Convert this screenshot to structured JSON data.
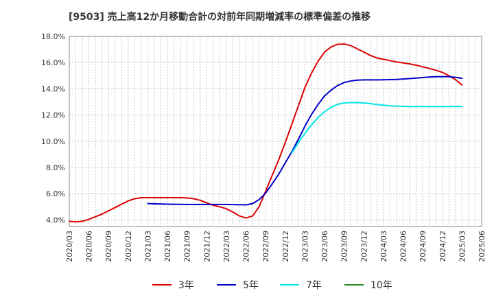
{
  "chart_data": {
    "type": "line",
    "title": "[9503]  売上高12か月移動合計の対前年同期増減率の標準偏差の推移",
    "xlabel": "",
    "ylabel": "",
    "ylim": [
      3.5,
      18.0
    ],
    "yticks": [
      4.0,
      6.0,
      8.0,
      10.0,
      12.0,
      14.0,
      16.0,
      18.0
    ],
    "ytick_labels": [
      "4.0%",
      "6.0%",
      "8.0%",
      "10.0%",
      "12.0%",
      "14.0%",
      "16.0%",
      "18.0%"
    ],
    "xtick_labels": [
      "2020/03",
      "2020/06",
      "2020/09",
      "2020/12",
      "2021/03",
      "2021/06",
      "2021/09",
      "2021/12",
      "2022/03",
      "2022/06",
      "2022/09",
      "2022/12",
      "2023/03",
      "2023/06",
      "2023/09",
      "2023/12",
      "2024/03",
      "2024/06",
      "2024/09",
      "2024/12",
      "2025/03",
      "2025/06"
    ],
    "grid": true,
    "legend_position": "bottom",
    "series": [
      {
        "name": "3年",
        "color": "#dd0000",
        "x": [
          "2020/03",
          "2020/04",
          "2020/05",
          "2020/06",
          "2020/07",
          "2020/08",
          "2020/09",
          "2020/10",
          "2020/11",
          "2020/12",
          "2021/01",
          "2021/02",
          "2021/03",
          "2021/04",
          "2021/05",
          "2021/06",
          "2021/07",
          "2021/08",
          "2021/09",
          "2021/10",
          "2021/11",
          "2021/12",
          "2022/01",
          "2022/02",
          "2022/03",
          "2022/04",
          "2022/05",
          "2022/06",
          "2022/07",
          "2022/08",
          "2022/09",
          "2022/10",
          "2022/11",
          "2022/12",
          "2023/01",
          "2023/02",
          "2023/03",
          "2023/04",
          "2023/05",
          "2023/06",
          "2023/07",
          "2023/08",
          "2023/09",
          "2023/10",
          "2023/11",
          "2023/12",
          "2024/01",
          "2024/02",
          "2024/03",
          "2024/04",
          "2024/05",
          "2024/06",
          "2024/07",
          "2024/08",
          "2024/09",
          "2024/10",
          "2024/11",
          "2024/12",
          "2025/01",
          "2025/02",
          "2025/03"
        ],
        "values": [
          3.9,
          3.85,
          3.9,
          4.05,
          4.25,
          4.45,
          4.7,
          4.95,
          5.2,
          5.45,
          5.62,
          5.7,
          5.7,
          5.7,
          5.7,
          5.7,
          5.7,
          5.7,
          5.68,
          5.62,
          5.5,
          5.3,
          5.12,
          5.0,
          4.85,
          4.6,
          4.3,
          4.15,
          4.3,
          5.0,
          6.2,
          7.4,
          8.6,
          9.9,
          11.3,
          12.7,
          14.1,
          15.2,
          16.1,
          16.8,
          17.2,
          17.4,
          17.42,
          17.3,
          17.05,
          16.8,
          16.55,
          16.35,
          16.25,
          16.15,
          16.05,
          15.98,
          15.9,
          15.8,
          15.68,
          15.55,
          15.42,
          15.25,
          15.0,
          14.7,
          14.3
        ]
      },
      {
        "name": "5年",
        "color": "#0000cc",
        "x": [
          "2021/03",
          "2021/06",
          "2021/09",
          "2021/12",
          "2022/03",
          "2022/06",
          "2022/07",
          "2022/08",
          "2022/09",
          "2022/10",
          "2022/11",
          "2022/12",
          "2023/01",
          "2023/02",
          "2023/03",
          "2023/04",
          "2023/05",
          "2023/06",
          "2023/07",
          "2023/08",
          "2023/09",
          "2023/10",
          "2023/11",
          "2023/12",
          "2024/01",
          "2024/02",
          "2024/03",
          "2024/04",
          "2024/05",
          "2024/06",
          "2024/07",
          "2024/08",
          "2024/09",
          "2024/10",
          "2024/11",
          "2024/12",
          "2025/01",
          "2025/02",
          "2025/03"
        ],
        "values": [
          5.25,
          5.2,
          5.18,
          5.18,
          5.18,
          5.15,
          5.25,
          5.55,
          6.05,
          6.75,
          7.5,
          8.35,
          9.2,
          10.15,
          11.15,
          12.05,
          12.8,
          13.45,
          13.9,
          14.25,
          14.48,
          14.6,
          14.66,
          14.68,
          14.68,
          14.68,
          14.69,
          14.7,
          14.72,
          14.75,
          14.78,
          14.82,
          14.86,
          14.9,
          14.92,
          14.93,
          14.92,
          14.88,
          14.8
        ]
      },
      {
        "name": "7年",
        "color": "#00e5e5",
        "x": [
          "2023/01",
          "2023/02",
          "2023/03",
          "2023/04",
          "2023/05",
          "2023/06",
          "2023/07",
          "2023/08",
          "2023/09",
          "2023/10",
          "2023/11",
          "2023/12",
          "2024/01",
          "2024/02",
          "2024/03",
          "2024/04",
          "2024/05",
          "2024/06",
          "2024/07",
          "2024/08",
          "2024/09",
          "2024/10",
          "2024/11",
          "2024/12",
          "2025/01",
          "2025/02",
          "2025/03"
        ],
        "values": [
          9.1,
          9.9,
          10.6,
          11.25,
          11.8,
          12.25,
          12.6,
          12.82,
          12.92,
          12.95,
          12.95,
          12.92,
          12.87,
          12.8,
          12.75,
          12.7,
          12.68,
          12.66,
          12.65,
          12.65,
          12.65,
          12.65,
          12.65,
          12.65,
          12.65,
          12.65,
          12.65
        ]
      },
      {
        "name": "10年",
        "color": "#228b22",
        "x": [],
        "values": []
      }
    ]
  }
}
